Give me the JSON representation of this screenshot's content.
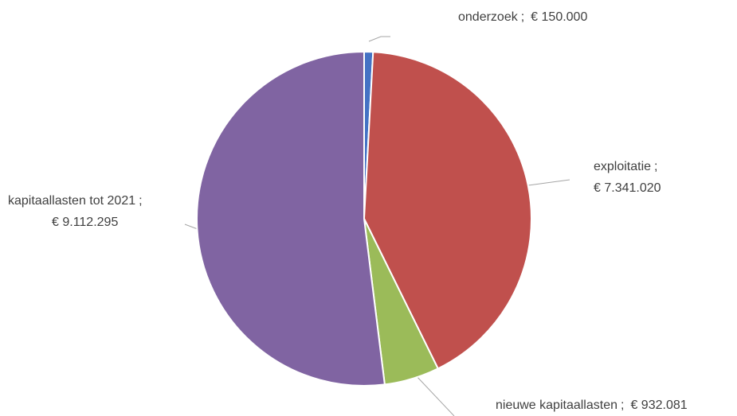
{
  "chart_data": {
    "type": "pie",
    "categories": [
      "onderzoek",
      "exploitatie",
      "nieuwe kapitaallasten",
      "kapitaallasten tot 2021"
    ],
    "values": [
      150000,
      7341020,
      932081,
      9112295
    ],
    "value_labels": [
      "€ 150.000",
      "€ 7.341.020",
      "€ 932.081",
      "€ 9.112.295"
    ],
    "label_separator": ";",
    "colors": [
      "#4472c4",
      "#c0504d",
      "#9bbb59",
      "#8064a2"
    ]
  }
}
